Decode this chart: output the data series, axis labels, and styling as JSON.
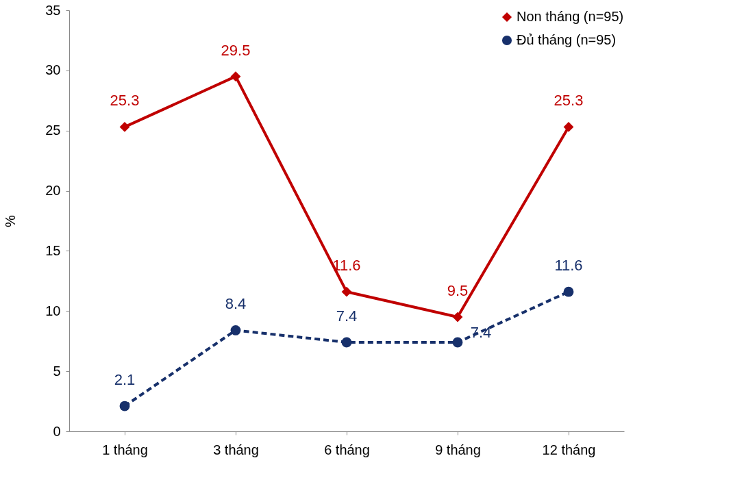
{
  "chart_data": {
    "type": "line",
    "ylabel": "%",
    "categories": [
      "1 tháng",
      "3 tháng",
      "6 tháng",
      "9 tháng",
      "12 tháng"
    ],
    "series": [
      {
        "name": "Non tháng (n=95)",
        "color": "#c00000",
        "values": [
          25.3,
          29.5,
          11.6,
          9.5,
          25.3
        ],
        "marker": "diamond",
        "line_style": "solid"
      },
      {
        "name": "Đủ tháng (n=95)",
        "color": "#17306b",
        "values": [
          2.1,
          8.4,
          7.4,
          7.4,
          11.6
        ],
        "marker": "circle",
        "line_style": "dashed"
      }
    ],
    "ylim": [
      0,
      35
    ],
    "yticks": [
      0,
      5,
      10,
      15,
      20,
      25,
      30,
      35
    ],
    "data_labels": true,
    "grid": false,
    "legend": "top right"
  }
}
